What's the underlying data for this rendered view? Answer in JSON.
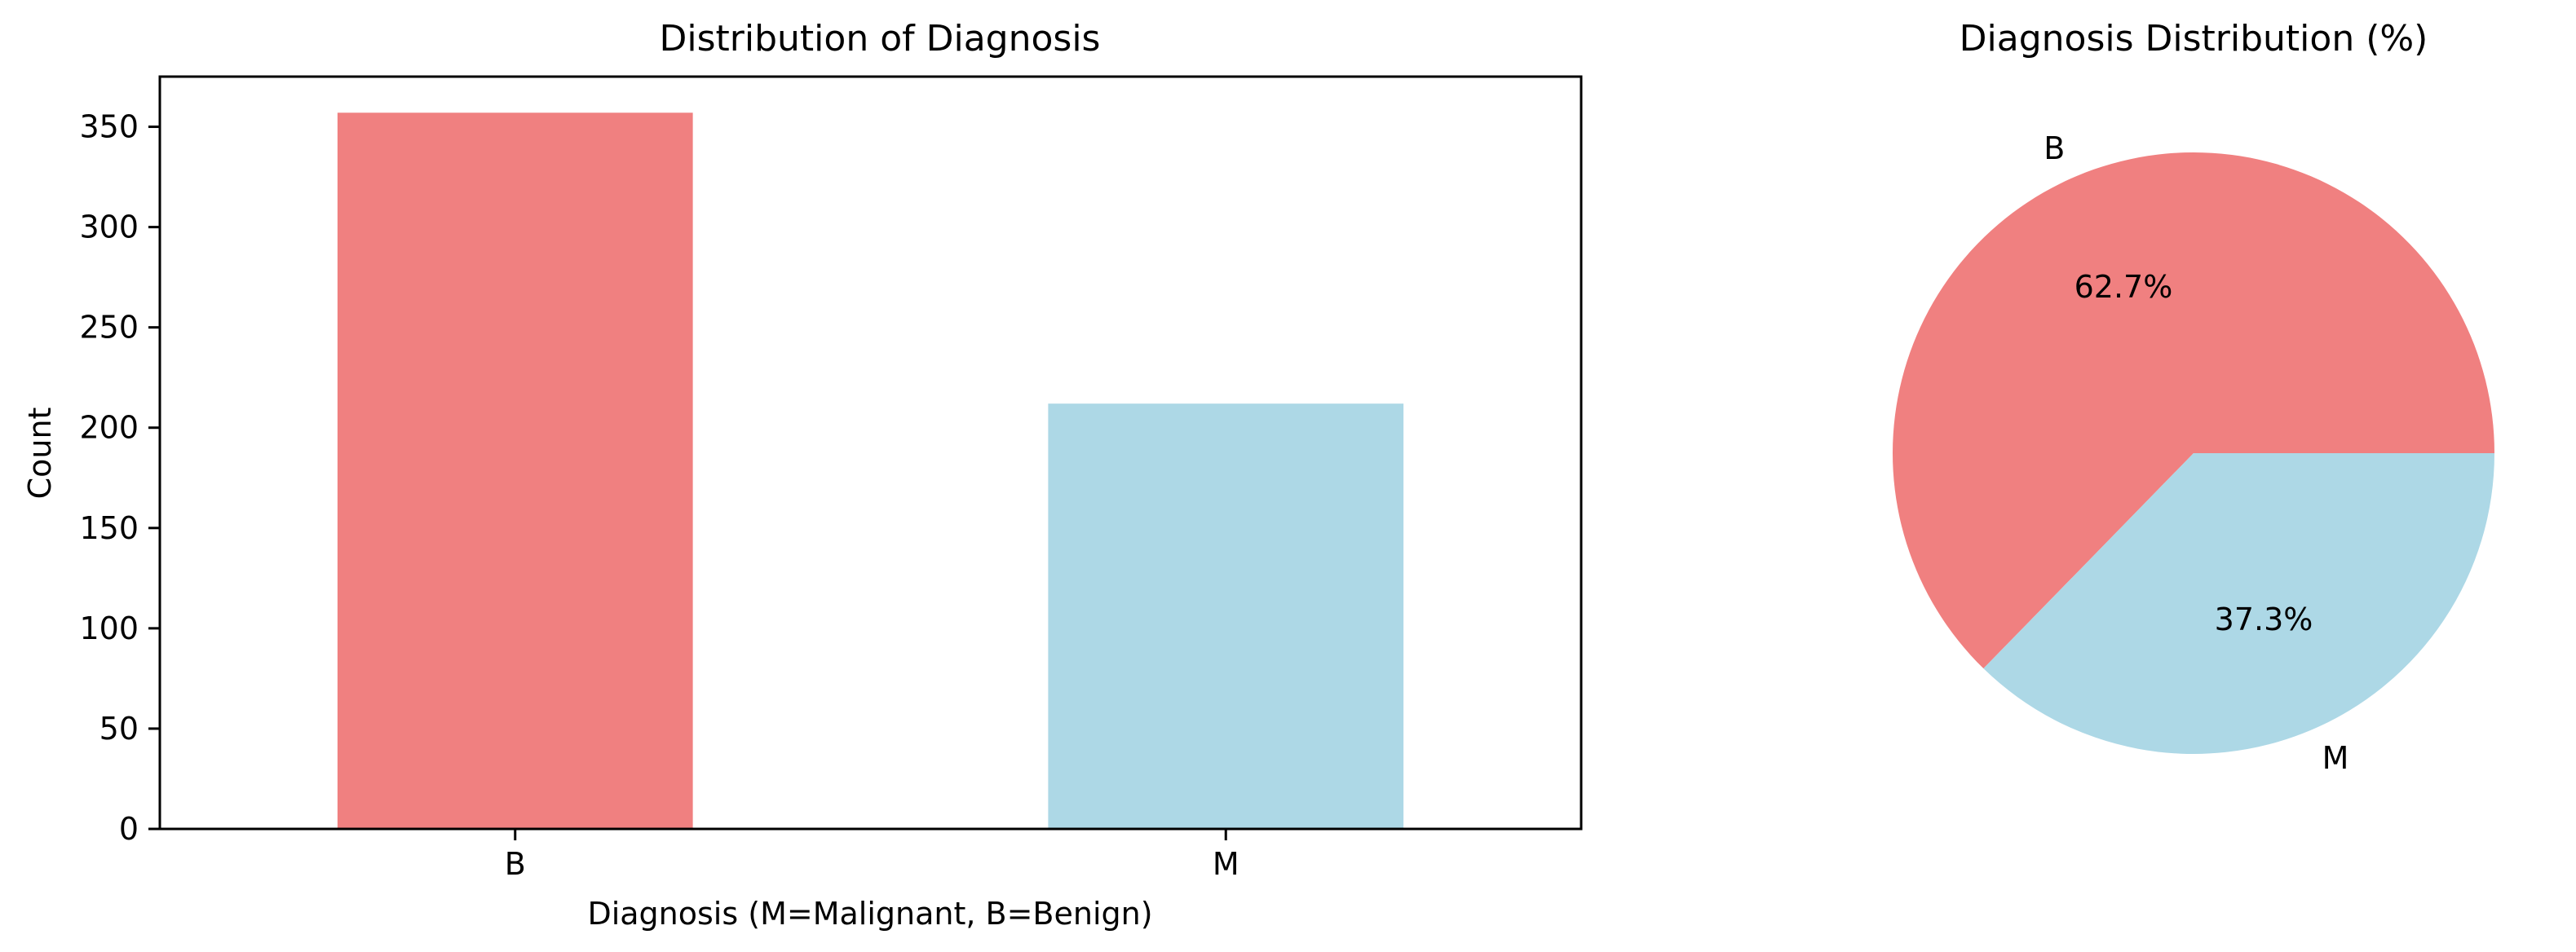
{
  "chart_data": [
    {
      "type": "bar",
      "title": "Distribution of Diagnosis",
      "xlabel": "Diagnosis (M=Malignant, B=Benign)",
      "ylabel": "Count",
      "categories": [
        "B",
        "M"
      ],
      "values": [
        357,
        212
      ],
      "colors": [
        "#f08080",
        "#add8e6"
      ],
      "ylim": [
        0,
        375
      ],
      "yticks": [
        0,
        50,
        100,
        150,
        200,
        250,
        300,
        350
      ],
      "grid": false
    },
    {
      "type": "pie",
      "title": "Diagnosis Distribution (%)",
      "labels": [
        "B",
        "M"
      ],
      "values": [
        62.7,
        37.3
      ],
      "value_labels": [
        "62.7%",
        "37.3%"
      ],
      "colors": [
        "#f08080",
        "#add8e6"
      ]
    }
  ]
}
